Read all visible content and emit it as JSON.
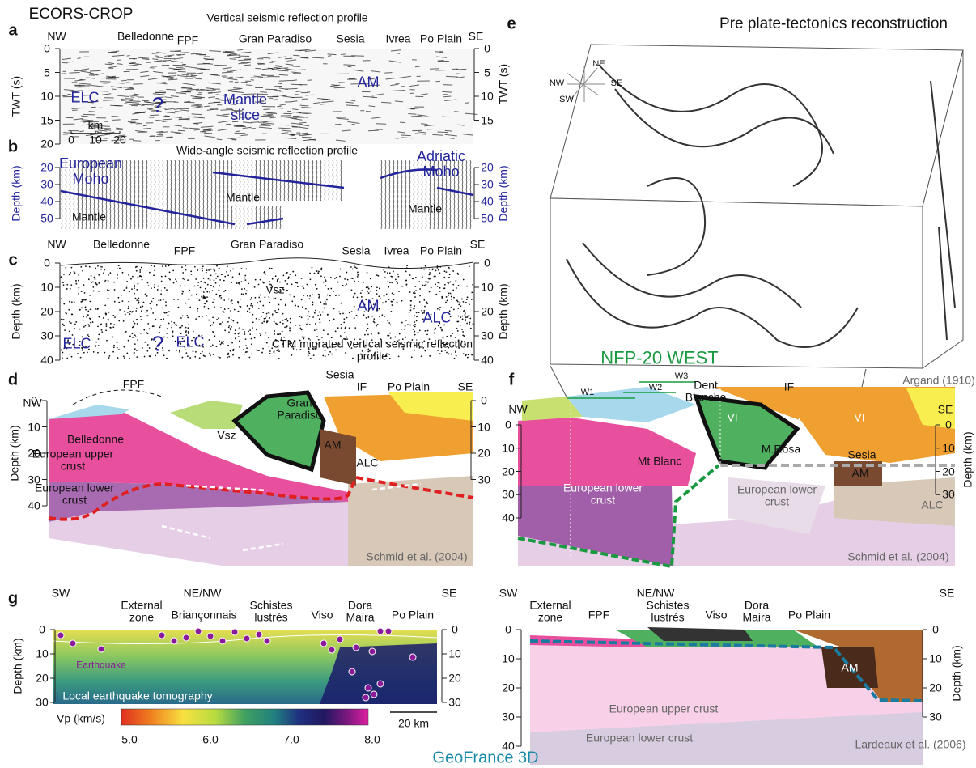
{
  "figure": {
    "panels": {
      "a": {
        "letter": "a",
        "texts": [
          "ECORS-CROP",
          "Vertical seismic reflection profile",
          "NW",
          "Belledonne",
          "FPF",
          "Gran Paradiso",
          "Sesia",
          "Ivrea",
          "Po Plain",
          "SE",
          "ELC",
          "?",
          "Mantle slice",
          "AM",
          "km"
        ],
        "scale_ticks": [
          0,
          10,
          20
        ],
        "left_axis": {
          "label": "TWT (s)",
          "ticks": [
            0,
            5,
            10,
            15,
            20
          ]
        },
        "right_axis": {
          "label": "TWT (s)",
          "ticks": [
            0,
            5,
            10,
            15
          ]
        }
      },
      "b": {
        "letter": "b",
        "texts": [
          "Wide-angle seismic reflection profile",
          "European Moho",
          "Mantle",
          "Mantle",
          "Mantle",
          "Adriatic Moho"
        ],
        "left_axis": {
          "label": "Depth (km)",
          "ticks": [
            20,
            30,
            40,
            50
          ]
        },
        "right_axis": {
          "label": "Depth (km)",
          "ticks": [
            20,
            30,
            40,
            50
          ]
        }
      },
      "c": {
        "letter": "c",
        "texts": [
          "NW",
          "Belledonne",
          "FPF",
          "Gran Paradiso",
          "Sesia",
          "Ivrea",
          "Po Plain",
          "SE",
          "Vsz",
          "ELC",
          "ELC",
          "?",
          "AM",
          "ALC",
          "CTM migrated vertical seismic reflection profile"
        ],
        "left_axis": {
          "label": "Depth (km)",
          "ticks": [
            0,
            10,
            20,
            30,
            40
          ]
        },
        "right_axis": {
          "label": "Depth (km)",
          "ticks": [
            0,
            10,
            20,
            30,
            40
          ]
        }
      },
      "d": {
        "letter": "d",
        "texts": [
          "FPF",
          "Sesia",
          "IF",
          "Po Plain",
          "NW",
          "SE",
          "Belledonne",
          "European upper crust",
          "European lower crust",
          "Gran Paradiso",
          "Vsz",
          "AM",
          "ALC",
          "Schmid et al. (2004)"
        ],
        "left_axis": {
          "label": "Depth (km)",
          "ticks": [
            0,
            10,
            20,
            30,
            40
          ]
        },
        "right_axis": {
          "ticks": [
            0,
            10,
            20,
            30
          ]
        }
      },
      "e": {
        "letter": "e",
        "texts": [
          "Pre plate-tectonics reconstruction",
          "NW",
          "NE",
          "SE",
          "SW",
          "Argand (1910)",
          "NFP-20 WEST"
        ]
      },
      "f": {
        "letter": "f",
        "texts": [
          "W1",
          "W2",
          "W3",
          "Dent Blanche",
          "NW",
          "IF",
          "SE",
          "VI",
          "V",
          "VI",
          "Mt Blanc",
          "M.Rosa",
          "Sesia",
          "AM",
          "ALC",
          "European lower crust",
          "European lower crust",
          "Schmid et al. (2004)"
        ],
        "left_axis": {
          "ticks": [
            0,
            10,
            20,
            30,
            40
          ]
        },
        "right_axis": {
          "label": "Depth (km)",
          "ticks": [
            0,
            10,
            20,
            30
          ]
        }
      },
      "g": {
        "letter": "g",
        "texts": [
          "SW",
          "NE/NW",
          "SE",
          "External zone",
          "Briançonnais",
          "Schistes lustrés",
          "Viso",
          "Dora Maira",
          "Po Plain",
          "Earthquake",
          "Local earthquake tomography",
          "Vp (km/s)",
          "20 km"
        ],
        "colorbar_ticks": [
          "5.0",
          "6.0",
          "7.0",
          "8.0"
        ],
        "left_axis": {
          "label": "Depth (km)",
          "ticks": [
            0,
            10,
            20,
            30
          ]
        },
        "right_axis": {
          "ticks": [
            0,
            10,
            20,
            30
          ]
        }
      },
      "h": {
        "texts": [
          "SW",
          "NE/NW",
          "SE",
          "External zone",
          "FPF",
          "Schistes lustrés",
          "Viso",
          "Dora Maira",
          "Po Plain",
          "AM",
          "European upper crust",
          "European lower crust",
          "Lardeaux et al. (2006)"
        ],
        "left_axis": {
          "ticks": [
            0,
            10,
            20,
            30,
            40
          ]
        },
        "right_axis": {
          "label": "Depth (km)",
          "ticks": [
            0,
            10,
            20,
            30
          ]
        }
      }
    },
    "footer": "GeoFrance 3D"
  }
}
